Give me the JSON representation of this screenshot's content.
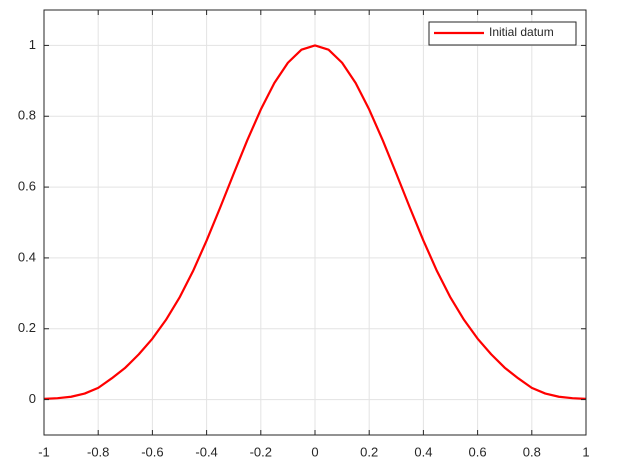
{
  "chart_data": {
    "type": "line",
    "x": [
      -1,
      -0.95,
      -0.9,
      -0.85,
      -0.8,
      -0.75,
      -0.7,
      -0.65,
      -0.6,
      -0.55,
      -0.5,
      -0.45,
      -0.4,
      -0.35,
      -0.3,
      -0.25,
      -0.2,
      -0.15,
      -0.1,
      -0.05,
      0,
      0.05,
      0.1,
      0.15,
      0.2,
      0.25,
      0.3,
      0.35,
      0.4,
      0.45,
      0.5,
      0.55,
      0.6,
      0.65,
      0.7,
      0.75,
      0.8,
      0.85,
      0.9,
      0.95,
      1
    ],
    "series": [
      {
        "name": "Initial datum",
        "color": "#ff0000",
        "values": [
          0.002,
          0.004,
          0.008,
          0.017,
          0.033,
          0.06,
          0.09,
          0.128,
          0.172,
          0.225,
          0.288,
          0.363,
          0.449,
          0.542,
          0.638,
          0.732,
          0.819,
          0.894,
          0.951,
          0.988,
          1,
          0.988,
          0.951,
          0.894,
          0.819,
          0.732,
          0.638,
          0.542,
          0.449,
          0.363,
          0.288,
          0.225,
          0.172,
          0.128,
          0.09,
          0.06,
          0.033,
          0.017,
          0.008,
          0.004,
          0.002
        ]
      }
    ],
    "xlim": [
      -1,
      1
    ],
    "xticks": [
      -1,
      -0.8,
      -0.6,
      -0.4,
      -0.2,
      0,
      0.2,
      0.4,
      0.6,
      0.8,
      1
    ],
    "ylim": [
      -0.1,
      1.1
    ],
    "yticks": [
      0,
      0.2,
      0.4,
      0.6,
      0.8,
      1
    ],
    "grid": true,
    "legend": "northeast"
  }
}
